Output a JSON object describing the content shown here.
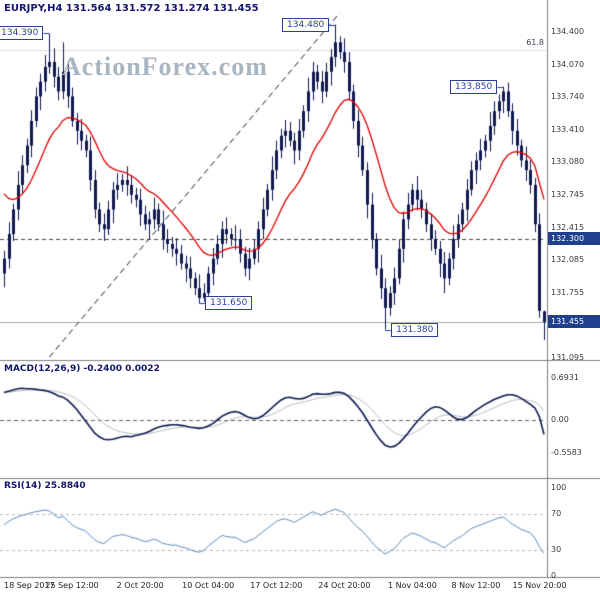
{
  "header": {
    "title": "EURJPY,H4 131.564 131.572 131.274 131.455"
  },
  "watermark": "ActionForex.com",
  "panels": {
    "macd": {
      "label": "MACD(12,26,9) -0.2400 0.0022"
    },
    "rsi": {
      "label": "RSI(14) 25.8840"
    }
  },
  "colors": {
    "candle": "#10194f",
    "ma": "#e00000",
    "macd_line": "#10194f",
    "macd_signal": "#b9bec7",
    "rsi_line": "#5b8fc0",
    "axis_tag_bg": "#20408e",
    "annotation": "#2b3f9e",
    "separator": "#808080",
    "watermark": "#a9b6c1",
    "trendline": "#1b1b35",
    "level_dashed": "#4a4a4a",
    "level_current": "#aaaaaa",
    "fib_line": "#e0e0e0",
    "zero_dash": "#666666",
    "rsi_guide": "#bbbbbb"
  },
  "chart_data": [
    {
      "type": "candlestick",
      "symbol": "EURJPY",
      "timeframe": "H4",
      "ohlc_current": {
        "open": 131.564,
        "high": 131.572,
        "low": 131.274,
        "close": 131.455
      },
      "ylim": [
        131.07,
        134.73
      ],
      "y_ticks": [
        "134.400",
        "134.070",
        "133.740",
        "133.410",
        "133.080",
        "132.745",
        "132.415",
        "132.085",
        "131.755",
        "131.425",
        "131.095"
      ],
      "x_ticks": [
        {
          "text": "18 Sep 2017",
          "index": 0
        },
        {
          "text": "25 Sep 12:00",
          "index": 15
        },
        {
          "text": "2 Oct 20:00",
          "index": 30
        },
        {
          "text": "10 Oct 04:00",
          "index": 45
        },
        {
          "text": "17 Oct 12:00",
          "index": 60
        },
        {
          "text": "24 Oct 20:00",
          "index": 75
        },
        {
          "text": "1 Nov 04:00",
          "index": 90
        },
        {
          "text": "8 Nov 12:00",
          "index": 104
        },
        {
          "text": "15 Nov 20:00",
          "index": 118
        }
      ],
      "axis_tags": [
        {
          "text": "132.300",
          "price": 132.3
        },
        {
          "text": "131.455",
          "price": 131.455
        }
      ],
      "levels": [
        {
          "price": 132.3,
          "style": "dashed"
        },
        {
          "price": 131.455,
          "style": "solid"
        }
      ],
      "fib": {
        "label": "61.8",
        "price": 134.22
      },
      "trendline": {
        "style": "dashed",
        "from": {
          "index": 10,
          "price": 131.1
        },
        "to": {
          "index": 74,
          "price": 134.6
        }
      },
      "annotations": [
        {
          "text": "134.390",
          "index": 10,
          "price": 134.39,
          "side": "left"
        },
        {
          "text": "134.480",
          "index": 73,
          "price": 134.48,
          "side": "left"
        },
        {
          "text": "133.850",
          "index": 110,
          "price": 133.85,
          "side": "left"
        },
        {
          "text": "131.650",
          "index": 43,
          "price": 131.65,
          "side": "right"
        },
        {
          "text": "131.380",
          "index": 84,
          "price": 131.38,
          "side": "right"
        }
      ],
      "ma": {
        "type": "ema",
        "period": 16,
        "start": 132.85
      },
      "candles": [
        [
          131.95,
          132.18,
          131.81,
          132.1
        ],
        [
          132.1,
          132.47,
          132.0,
          132.35
        ],
        [
          132.35,
          132.66,
          132.28,
          132.6
        ],
        [
          132.6,
          132.99,
          132.49,
          132.85
        ],
        [
          132.85,
          133.15,
          132.76,
          133.05
        ],
        [
          133.05,
          133.32,
          132.97,
          133.25
        ],
        [
          133.25,
          133.61,
          133.13,
          133.5
        ],
        [
          133.5,
          133.84,
          133.44,
          133.75
        ],
        [
          133.75,
          133.98,
          133.61,
          133.9
        ],
        [
          133.9,
          134.17,
          133.8,
          134.05
        ],
        [
          134.05,
          134.39,
          133.98,
          134.1
        ],
        [
          134.1,
          134.24,
          133.84,
          133.95
        ],
        [
          133.95,
          134.05,
          133.71,
          133.8
        ],
        [
          133.8,
          134.3,
          133.72,
          134.0
        ],
        [
          134.0,
          134.11,
          133.63,
          133.75
        ],
        [
          133.75,
          133.84,
          133.44,
          133.5
        ],
        [
          133.5,
          133.58,
          133.26,
          133.4
        ],
        [
          133.4,
          133.52,
          133.2,
          133.3
        ],
        [
          133.3,
          133.36,
          133.13,
          133.2
        ],
        [
          133.2,
          133.34,
          132.79,
          132.9
        ],
        [
          132.9,
          133.0,
          132.51,
          132.6
        ],
        [
          132.6,
          132.67,
          132.37,
          132.45
        ],
        [
          132.45,
          132.56,
          132.28,
          132.4
        ],
        [
          132.4,
          132.69,
          132.34,
          132.6
        ],
        [
          132.6,
          132.88,
          132.46,
          132.8
        ],
        [
          132.8,
          132.97,
          132.7,
          132.85
        ],
        [
          132.85,
          132.96,
          132.78,
          132.9
        ],
        [
          132.9,
          133.04,
          132.74,
          132.85
        ],
        [
          132.85,
          132.95,
          132.66,
          132.75
        ],
        [
          132.75,
          132.82,
          132.62,
          132.7
        ],
        [
          132.7,
          132.81,
          132.43,
          132.55
        ],
        [
          132.55,
          132.64,
          132.39,
          132.45
        ],
        [
          132.45,
          132.58,
          132.31,
          132.5
        ],
        [
          132.5,
          132.72,
          132.4,
          132.6
        ],
        [
          132.6,
          132.66,
          132.38,
          132.45
        ],
        [
          132.45,
          132.59,
          132.19,
          132.3
        ],
        [
          132.3,
          132.4,
          132.16,
          132.25
        ],
        [
          132.25,
          132.32,
          132.12,
          132.2
        ],
        [
          132.2,
          132.31,
          132.03,
          132.15
        ],
        [
          132.15,
          132.24,
          131.99,
          132.05
        ],
        [
          132.05,
          132.13,
          131.86,
          132.0
        ],
        [
          132.0,
          132.12,
          131.8,
          131.9
        ],
        [
          131.9,
          131.96,
          131.73,
          131.8
        ],
        [
          131.8,
          131.94,
          131.65,
          131.7
        ],
        [
          131.7,
          131.85,
          131.66,
          131.75
        ],
        [
          131.75,
          132.02,
          131.67,
          131.95
        ],
        [
          131.95,
          132.21,
          131.83,
          132.1
        ],
        [
          132.1,
          132.34,
          132.04,
          132.25
        ],
        [
          132.25,
          132.48,
          132.11,
          132.4
        ],
        [
          132.4,
          132.52,
          132.25,
          132.35
        ],
        [
          132.35,
          132.41,
          132.23,
          132.3
        ],
        [
          132.3,
          132.44,
          132.19,
          132.3
        ],
        [
          132.3,
          132.4,
          132.06,
          132.15
        ],
        [
          132.15,
          132.22,
          131.92,
          132.0
        ],
        [
          132.0,
          132.21,
          131.88,
          132.1
        ],
        [
          132.1,
          132.29,
          132.04,
          132.2
        ],
        [
          132.2,
          132.48,
          132.06,
          132.4
        ],
        [
          132.4,
          132.72,
          132.3,
          132.6
        ],
        [
          132.6,
          132.86,
          132.53,
          132.8
        ],
        [
          132.8,
          133.14,
          132.69,
          133.0
        ],
        [
          133.0,
          133.3,
          132.91,
          133.2
        ],
        [
          133.2,
          133.42,
          133.12,
          133.35
        ],
        [
          133.35,
          133.51,
          133.23,
          133.4
        ],
        [
          133.4,
          133.49,
          133.24,
          133.3
        ],
        [
          133.3,
          133.38,
          133.06,
          133.2
        ],
        [
          133.2,
          133.52,
          133.1,
          133.4
        ],
        [
          133.4,
          133.66,
          133.33,
          133.6
        ],
        [
          133.6,
          133.94,
          133.49,
          133.8
        ],
        [
          133.8,
          134.1,
          133.71,
          134.0
        ],
        [
          134.0,
          134.07,
          133.82,
          133.9
        ],
        [
          133.9,
          134.01,
          133.68,
          133.8
        ],
        [
          133.8,
          134.09,
          133.74,
          134.0
        ],
        [
          134.0,
          134.23,
          133.86,
          134.15
        ],
        [
          134.15,
          134.48,
          134.05,
          134.3
        ],
        [
          134.3,
          134.36,
          134.13,
          134.2
        ],
        [
          134.2,
          134.34,
          133.99,
          134.1
        ],
        [
          134.1,
          134.2,
          133.71,
          133.8
        ],
        [
          133.8,
          133.87,
          133.42,
          133.5
        ],
        [
          133.5,
          133.61,
          133.13,
          133.25
        ],
        [
          133.25,
          133.34,
          132.94,
          133.0
        ],
        [
          133.0,
          133.08,
          132.51,
          132.65
        ],
        [
          132.65,
          132.77,
          132.2,
          132.3
        ],
        [
          132.3,
          132.36,
          131.93,
          132.0
        ],
        [
          132.0,
          132.14,
          131.69,
          131.8
        ],
        [
          131.8,
          131.9,
          131.38,
          131.6
        ],
        [
          131.6,
          131.82,
          131.52,
          131.75
        ],
        [
          131.75,
          132.01,
          131.63,
          131.9
        ],
        [
          131.9,
          132.29,
          131.84,
          132.2
        ],
        [
          132.2,
          132.58,
          132.06,
          132.5
        ],
        [
          132.5,
          132.77,
          132.4,
          132.65
        ],
        [
          132.65,
          132.86,
          132.58,
          132.8
        ],
        [
          132.8,
          132.94,
          132.59,
          132.7
        ],
        [
          132.7,
          132.8,
          132.51,
          132.6
        ],
        [
          132.6,
          132.67,
          132.37,
          132.45
        ],
        [
          132.45,
          132.56,
          132.18,
          132.3
        ],
        [
          132.3,
          132.39,
          132.14,
          132.2
        ],
        [
          132.2,
          132.28,
          131.91,
          132.05
        ],
        [
          132.05,
          132.17,
          131.75,
          131.9
        ],
        [
          131.9,
          132.16,
          131.83,
          132.1
        ],
        [
          132.1,
          132.44,
          131.99,
          132.3
        ],
        [
          132.3,
          132.55,
          132.21,
          132.45
        ],
        [
          132.45,
          132.67,
          132.37,
          132.6
        ],
        [
          132.6,
          132.91,
          132.48,
          132.8
        ],
        [
          132.8,
          133.09,
          132.74,
          133.0
        ],
        [
          133.0,
          133.18,
          132.86,
          133.1
        ],
        [
          133.1,
          133.32,
          133.0,
          133.2
        ],
        [
          133.2,
          133.36,
          133.13,
          133.3
        ],
        [
          133.3,
          133.59,
          133.19,
          133.45
        ],
        [
          133.45,
          133.7,
          133.36,
          133.6
        ],
        [
          133.6,
          133.77,
          133.52,
          133.7
        ],
        [
          133.7,
          133.85,
          133.58,
          133.8
        ],
        [
          133.8,
          133.89,
          133.54,
          133.6
        ],
        [
          133.6,
          133.68,
          133.26,
          133.4
        ],
        [
          133.4,
          133.52,
          133.15,
          133.25
        ],
        [
          133.25,
          133.31,
          133.03,
          133.1
        ],
        [
          133.1,
          133.24,
          132.89,
          133.0
        ],
        [
          133.0,
          133.1,
          132.76,
          132.85
        ],
        [
          132.85,
          132.92,
          132.37,
          132.45
        ],
        [
          132.45,
          132.56,
          131.5,
          131.57
        ],
        [
          131.564,
          131.572,
          131.274,
          131.455
        ]
      ]
    },
    {
      "type": "line",
      "name": "MACD",
      "params": "12,26,9",
      "current": {
        "macd": -0.24,
        "signal": 0.0022
      },
      "y_ticks": [
        {
          "text": "0.6931",
          "value": 0.6931
        },
        {
          "text": "0.00",
          "value": 0
        },
        {
          "text": "-0.5583",
          "value": -0.5583
        }
      ],
      "zero_line": true,
      "signal_period": 9,
      "values": [
        0.46,
        0.48,
        0.5,
        0.52,
        0.53,
        0.52,
        0.52,
        0.51,
        0.5,
        0.49,
        0.47,
        0.44,
        0.4,
        0.38,
        0.33,
        0.26,
        0.18,
        0.08,
        -0.02,
        -0.12,
        -0.22,
        -0.28,
        -0.32,
        -0.33,
        -0.32,
        -0.3,
        -0.28,
        -0.27,
        -0.28,
        -0.26,
        -0.24,
        -0.22,
        -0.19,
        -0.15,
        -0.12,
        -0.1,
        -0.09,
        -0.08,
        -0.08,
        -0.09,
        -0.1,
        -0.12,
        -0.13,
        -0.14,
        -0.13,
        -0.1,
        -0.06,
        0.0,
        0.06,
        0.1,
        0.13,
        0.14,
        0.12,
        0.08,
        0.04,
        0.02,
        0.03,
        0.07,
        0.13,
        0.2,
        0.27,
        0.33,
        0.37,
        0.38,
        0.36,
        0.35,
        0.36,
        0.39,
        0.43,
        0.44,
        0.43,
        0.43,
        0.44,
        0.46,
        0.46,
        0.44,
        0.39,
        0.31,
        0.22,
        0.12,
        0.0,
        -0.12,
        -0.24,
        -0.34,
        -0.42,
        -0.45,
        -0.44,
        -0.39,
        -0.31,
        -0.22,
        -0.12,
        -0.03,
        0.05,
        0.13,
        0.19,
        0.22,
        0.21,
        0.17,
        0.11,
        0.05,
        0.01,
        0.01,
        0.04,
        0.1,
        0.16,
        0.21,
        0.26,
        0.3,
        0.34,
        0.37,
        0.4,
        0.42,
        0.42,
        0.4,
        0.36,
        0.31,
        0.26,
        0.2,
        0.05,
        -0.24
      ]
    },
    {
      "type": "line",
      "name": "RSI",
      "params": "14",
      "current": 25.884,
      "ylim": [
        0,
        100
      ],
      "y_ticks": [
        {
          "text": "100",
          "value": 100
        },
        {
          "text": "70",
          "value": 70
        },
        {
          "text": "30",
          "value": 30
        },
        {
          "text": "0",
          "value": 0
        }
      ],
      "guide_lines": [
        70,
        30
      ],
      "values": [
        58,
        62,
        65,
        67,
        69,
        70,
        72,
        73,
        74,
        75,
        74,
        70,
        66,
        68,
        63,
        58,
        55,
        53,
        51,
        46,
        41,
        38,
        37,
        41,
        45,
        46,
        47,
        46,
        44,
        43,
        41,
        39,
        40,
        42,
        40,
        37,
        36,
        35,
        35,
        33,
        32,
        30,
        28,
        27,
        29,
        34,
        38,
        42,
        46,
        45,
        44,
        44,
        41,
        38,
        40,
        42,
        46,
        50,
        54,
        58,
        62,
        64,
        65,
        63,
        61,
        64,
        67,
        70,
        73,
        71,
        69,
        72,
        74,
        76,
        74,
        72,
        66,
        60,
        55,
        51,
        45,
        39,
        33,
        29,
        25,
        28,
        31,
        37,
        43,
        46,
        49,
        47,
        45,
        42,
        39,
        38,
        35,
        32,
        36,
        40,
        43,
        46,
        50,
        54,
        56,
        58,
        60,
        62,
        64,
        66,
        67,
        63,
        59,
        56,
        53,
        51,
        49,
        43,
        33,
        25.88
      ]
    }
  ]
}
